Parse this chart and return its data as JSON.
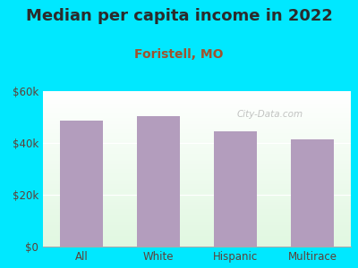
{
  "title": "Median per capita income in 2022",
  "subtitle": "Foristell, MO",
  "categories": [
    "All",
    "White",
    "Hispanic",
    "Multirace"
  ],
  "values": [
    48500,
    50500,
    44500,
    41500
  ],
  "bar_color": "#b39dbd",
  "background_outer": "#00e8ff",
  "title_color": "#2b2b2b",
  "title_fontsize": 13,
  "subtitle_fontsize": 10,
  "subtitle_color": "#a0522d",
  "tick_label_color": "#5d4037",
  "ylim": [
    0,
    60000
  ],
  "yticks": [
    0,
    20000,
    40000,
    60000
  ],
  "ytick_labels": [
    "$0",
    "$20k",
    "$40k",
    "$60k"
  ],
  "watermark": "City-Data.com"
}
